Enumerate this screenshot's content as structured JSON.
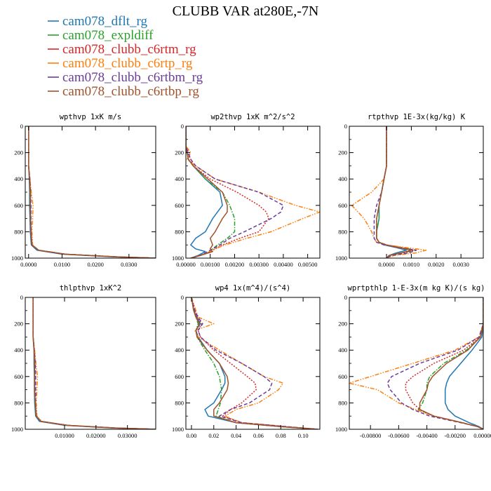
{
  "figure_title": "CLUBB VAR at280E,-7N",
  "legend": [
    {
      "label": "cam078_dflt_rg",
      "color": "#1f77b4",
      "dash": "solid"
    },
    {
      "label": "cam078_expldiff",
      "color": "#2ca02c",
      "dash": "dashdot"
    },
    {
      "label": "cam078_clubb_c6rtm_rg",
      "color": "#d62728",
      "dash": "dot"
    },
    {
      "label": "cam078_clubb_c6rtp_rg",
      "color": "#ff7f0e",
      "dash": "dashdotdot"
    },
    {
      "label": "cam078_clubb_c6rtbm_rg",
      "color": "#6a3d9a",
      "dash": "dash"
    },
    {
      "label": "cam078_clubb_c6rtbp_rg",
      "color": "#a0522d",
      "dash": "solid"
    }
  ],
  "chart_data": [
    {
      "type": "line",
      "title": "wpthvp  1xK m/s",
      "xlim": [
        -0.001,
        0.038
      ],
      "ylim": [
        1000,
        0
      ],
      "xticks": [
        0,
        0.01,
        0.02,
        0.03
      ],
      "xtick_labels": [
        "0.0000",
        "0.0100",
        "0.0200",
        "0.0300"
      ],
      "yticks": [
        0,
        200,
        400,
        600,
        800,
        1000
      ],
      "ytick_labels": [
        "0",
        "200",
        "400",
        "600",
        "800",
        "1000"
      ],
      "y": [
        0,
        200,
        300,
        400,
        500,
        600,
        700,
        800,
        900,
        940,
        970,
        990,
        1000
      ],
      "series": [
        {
          "legend": 0,
          "x": [
            0,
            0,
            0,
            0.0002,
            0.0003,
            0.0003,
            0.0004,
            0.0005,
            0.0008,
            0.0025,
            0.01,
            0.025,
            0.038
          ]
        },
        {
          "legend": 1,
          "x": [
            0,
            0,
            0,
            0.0003,
            0.0004,
            0.0005,
            0.0006,
            0.0007,
            0.001,
            0.003,
            0.011,
            0.026,
            0.038
          ]
        },
        {
          "legend": 2,
          "x": [
            0,
            0,
            0,
            0.0003,
            0.0005,
            0.0006,
            0.0006,
            0.0007,
            0.001,
            0.003,
            0.011,
            0.026,
            0.038
          ]
        },
        {
          "legend": 3,
          "x": [
            0,
            0,
            0,
            0.0004,
            0.0008,
            0.0013,
            0.0012,
            0.001,
            0.0012,
            0.003,
            0.011,
            0.026,
            0.038
          ]
        },
        {
          "legend": 4,
          "x": [
            0,
            0,
            0,
            0.0004,
            0.0006,
            0.0007,
            0.0007,
            0.0008,
            0.001,
            0.003,
            0.011,
            0.026,
            0.038
          ]
        },
        {
          "legend": 5,
          "x": [
            0,
            0,
            0,
            0.0003,
            0.0005,
            0.0005,
            0.0006,
            0.0007,
            0.001,
            0.003,
            0.011,
            0.026,
            0.038
          ]
        }
      ]
    },
    {
      "type": "line",
      "title": "wp2thvp  1xK m^2/s^2",
      "xlim": [
        0,
        0.0055
      ],
      "ylim": [
        1000,
        0
      ],
      "xticks": [
        0,
        0.001,
        0.002,
        0.003,
        0.004,
        0.005
      ],
      "xtick_labels": [
        "0.00000",
        "0.00100",
        "0.00200",
        "0.00300",
        "0.00400",
        "0.00500"
      ],
      "yticks": [
        0,
        200,
        400,
        600,
        800,
        1000
      ],
      "ytick_labels": [
        "0",
        "200",
        "400",
        "600",
        "800",
        "1000"
      ],
      "y": [
        0,
        150,
        200,
        250,
        300,
        400,
        500,
        600,
        650,
        700,
        800,
        850,
        900,
        930,
        950,
        980,
        1000
      ],
      "series": [
        {
          "legend": 0,
          "x": [
            0,
            0,
            5e-05,
            0.0001,
            0.0003,
            0.0008,
            0.0014,
            0.0015,
            0.0013,
            0.0011,
            0.0008,
            0.0004,
            0.0002,
            0.0004,
            0.0008,
            0.0005,
            0.0002
          ]
        },
        {
          "legend": 1,
          "x": [
            0,
            0,
            5e-05,
            0.0001,
            0.0003,
            0.0008,
            0.0015,
            0.0018,
            0.0019,
            0.002,
            0.002,
            0.0017,
            0.0013,
            0.0011,
            0.001,
            0.0006,
            0.0002
          ]
        },
        {
          "legend": 2,
          "x": [
            0,
            0,
            5e-05,
            0.0002,
            0.0003,
            0.001,
            0.0021,
            0.003,
            0.0033,
            0.0034,
            0.003,
            0.0022,
            0.0015,
            0.0012,
            0.001,
            0.0006,
            0.0002
          ]
        },
        {
          "legend": 3,
          "x": [
            0,
            0,
            0.0002,
            5e-05,
            0.0004,
            0.0012,
            0.003,
            0.0045,
            0.0055,
            0.0048,
            0.0035,
            0.0025,
            0.0016,
            0.0012,
            0.001,
            0.0006,
            0.0002
          ]
        },
        {
          "legend": 4,
          "x": [
            0,
            0,
            0.0001,
            0.0002,
            0.0004,
            0.0012,
            0.003,
            0.004,
            0.0039,
            0.0035,
            0.0024,
            0.0018,
            0.0014,
            0.0011,
            0.0009,
            0.0006,
            0.0002
          ]
        },
        {
          "legend": 5,
          "x": [
            0,
            0,
            5e-05,
            0.0001,
            0.0003,
            0.0009,
            0.0015,
            0.0017,
            0.0017,
            0.0015,
            0.0012,
            0.001,
            0.0011,
            0.001,
            0.0011,
            0.0006,
            0.0002
          ]
        }
      ]
    },
    {
      "type": "line",
      "title": "rtpthvp  1E-3x(kg/kg) K",
      "xlim": [
        -0.0015,
        0.0039
      ],
      "ylim": [
        1000,
        0
      ],
      "xticks": [
        0,
        0.001,
        0.002,
        0.003
      ],
      "xtick_labels": [
        "0.0000",
        "0.0010",
        "0.0020",
        "0.0030"
      ],
      "yticks": [
        0,
        200,
        400,
        600,
        800,
        1000
      ],
      "ytick_labels": [
        "0",
        "200",
        "400",
        "600",
        "800",
        "1000"
      ],
      "y": [
        0,
        300,
        400,
        500,
        600,
        700,
        800,
        850,
        880,
        900,
        920,
        940,
        960,
        980,
        1000
      ],
      "series": [
        {
          "legend": 0,
          "x": [
            0,
            0,
            -0.0001,
            -0.0002,
            -0.0003,
            -0.0003,
            -0.0004,
            -0.0004,
            -0.0003,
            -0.0001,
            0.0004,
            0.0008,
            0.0004,
            0.0001,
            0
          ]
        },
        {
          "legend": 1,
          "x": [
            0,
            0,
            -0.0001,
            -0.0002,
            -0.0003,
            -0.0003,
            -0.0004,
            -0.0004,
            -0.0003,
            0,
            0.0006,
            0.0012,
            0.0006,
            0.0001,
            0
          ]
        },
        {
          "legend": 2,
          "x": [
            0,
            0,
            -0.0001,
            -0.0002,
            -0.0003,
            -0.0004,
            -0.0004,
            -0.0004,
            -0.0003,
            0,
            0.0006,
            0.0011,
            0.0007,
            0.0001,
            0
          ]
        },
        {
          "legend": 3,
          "x": [
            0,
            0,
            -0.0001,
            -0.0006,
            -0.0014,
            -0.0009,
            -0.0006,
            -0.0005,
            -0.0004,
            0,
            0.0008,
            0.0016,
            0.0012,
            0.0003,
            0
          ]
        },
        {
          "legend": 4,
          "x": [
            0,
            0,
            -0.0001,
            -0.0002,
            -0.0004,
            -0.0005,
            -0.0005,
            -0.0005,
            -0.0004,
            -0.0001,
            0.0005,
            0.0012,
            0.0009,
            0.0002,
            0
          ]
        },
        {
          "legend": 5,
          "x": [
            0,
            0,
            -0.0001,
            -0.0002,
            -0.0003,
            -0.0004,
            -0.0004,
            -0.0004,
            -0.0003,
            0,
            0.0005,
            0.001,
            0.0006,
            0.0001,
            0
          ]
        }
      ]
    },
    {
      "type": "line",
      "title": "thlpthvp  1xK^2",
      "xlim": [
        -0.0025,
        0.039
      ],
      "ylim": [
        1000,
        0
      ],
      "xticks": [
        0.01,
        0.02,
        0.03
      ],
      "xtick_labels": [
        "0.01000",
        "0.02000",
        "0.03000"
      ],
      "yticks": [
        0,
        200,
        400,
        600,
        800,
        1000
      ],
      "ytick_labels": [
        "0",
        "200",
        "400",
        "600",
        "800",
        "1000"
      ],
      "y": [
        0,
        200,
        300,
        400,
        500,
        600,
        700,
        800,
        900,
        940,
        970,
        990,
        1000
      ],
      "series": [
        {
          "legend": 0,
          "x": [
            0,
            0,
            0,
            0.0003,
            0.0003,
            0.0004,
            0.0004,
            0.0005,
            0.0008,
            0.002,
            0.01,
            0.025,
            0.039
          ]
        },
        {
          "legend": 1,
          "x": [
            0,
            0,
            0,
            0.0003,
            0.0005,
            0.0005,
            0.0005,
            0.0006,
            0.0009,
            0.0025,
            0.011,
            0.026,
            0.039
          ]
        },
        {
          "legend": 2,
          "x": [
            0,
            0,
            0,
            0.0004,
            0.0006,
            0.0006,
            0.0006,
            0.0007,
            0.001,
            0.0025,
            0.011,
            0.026,
            0.039
          ]
        },
        {
          "legend": 3,
          "x": [
            0,
            0,
            0,
            0.0005,
            0.0009,
            0.0014,
            0.0012,
            0.001,
            0.0012,
            0.0028,
            0.011,
            0.026,
            0.039
          ]
        },
        {
          "legend": 4,
          "x": [
            0,
            0,
            0,
            0.0004,
            0.0007,
            0.0008,
            0.0008,
            0.0008,
            0.001,
            0.0025,
            0.011,
            0.026,
            0.039
          ]
        },
        {
          "legend": 5,
          "x": [
            0,
            0,
            0,
            0.0003,
            0.0005,
            0.0005,
            0.0005,
            0.0007,
            0.001,
            0.0025,
            0.011,
            0.026,
            0.039
          ]
        }
      ]
    },
    {
      "type": "line",
      "title": "wp4  1x(m^4)/(s^4)",
      "xlim": [
        -0.005,
        0.115
      ],
      "ylim": [
        1000,
        0
      ],
      "xticks": [
        0,
        0.02,
        0.04,
        0.06,
        0.08,
        0.1
      ],
      "xtick_labels": [
        "0.00",
        "0.02",
        "0.04",
        "0.06",
        "0.08",
        "0.10"
      ],
      "yticks": [
        0,
        200,
        400,
        600,
        800,
        1000
      ],
      "ytick_labels": [
        "0",
        "200",
        "400",
        "600",
        "800",
        "1000"
      ],
      "y": [
        0,
        100,
        150,
        200,
        250,
        300,
        400,
        500,
        600,
        650,
        700,
        800,
        850,
        900,
        950,
        980,
        1000
      ],
      "series": [
        {
          "legend": 0,
          "x": [
            0,
            0.002,
            0.005,
            0.008,
            0.004,
            0.006,
            0.014,
            0.025,
            0.03,
            0.03,
            0.027,
            0.02,
            0.012,
            0.015,
            0.04,
            0.08,
            0.113
          ]
        },
        {
          "legend": 1,
          "x": [
            0,
            0.002,
            0.004,
            0.006,
            0.004,
            0.005,
            0.012,
            0.02,
            0.025,
            0.026,
            0.027,
            0.026,
            0.024,
            0.022,
            0.04,
            0.08,
            0.113
          ]
        },
        {
          "legend": 2,
          "x": [
            0,
            0.003,
            0.005,
            0.009,
            0.006,
            0.008,
            0.02,
            0.035,
            0.05,
            0.057,
            0.058,
            0.045,
            0.035,
            0.028,
            0.045,
            0.085,
            0.113
          ]
        },
        {
          "legend": 3,
          "x": [
            0,
            0.004,
            0.006,
            0.02,
            0.003,
            0.006,
            0.025,
            0.045,
            0.065,
            0.082,
            0.078,
            0.06,
            0.04,
            0.03,
            0.045,
            0.085,
            0.113
          ]
        },
        {
          "legend": 4,
          "x": [
            0,
            0.003,
            0.006,
            0.01,
            0.006,
            0.008,
            0.022,
            0.045,
            0.065,
            0.072,
            0.07,
            0.052,
            0.035,
            0.025,
            0.045,
            0.085,
            0.113
          ]
        },
        {
          "legend": 5,
          "x": [
            0,
            0.002,
            0.004,
            0.007,
            0.004,
            0.005,
            0.014,
            0.025,
            0.032,
            0.033,
            0.032,
            0.025,
            0.02,
            0.02,
            0.04,
            0.08,
            0.113
          ]
        }
      ]
    },
    {
      "type": "line",
      "title": "wprtpthlp  1-E-3x(m kg K)/(s kg)",
      "xlim": [
        -0.0095,
        0
      ],
      "ylim": [
        1000,
        0
      ],
      "xticks": [
        -0.008,
        -0.006,
        -0.004,
        -0.002,
        0
      ],
      "xtick_labels": [
        "-0.00800",
        "-0.00600",
        "-0.00400",
        "-0.00200",
        "0.00000"
      ],
      "yticks": [
        0,
        200,
        400,
        600,
        800,
        1000
      ],
      "ytick_labels": [
        "0",
        "200",
        "400",
        "600",
        "800",
        "1000"
      ],
      "y": [
        0,
        200,
        300,
        400,
        500,
        600,
        650,
        700,
        800,
        850,
        900,
        950,
        980,
        1000
      ],
      "series": [
        {
          "legend": 0,
          "x": [
            0,
            0,
            -0.0001,
            -0.0008,
            -0.0016,
            -0.0024,
            -0.0026,
            -0.0027,
            -0.0027,
            -0.0025,
            -0.002,
            -0.001,
            -0.0003,
            0
          ]
        },
        {
          "legend": 1,
          "x": [
            0,
            0,
            -0.0002,
            -0.0012,
            -0.0028,
            -0.0038,
            -0.004,
            -0.004,
            -0.0043,
            -0.0046,
            -0.0035,
            -0.0015,
            -0.0004,
            0
          ]
        },
        {
          "legend": 2,
          "x": [
            0,
            0,
            -0.0002,
            -0.0014,
            -0.0035,
            -0.005,
            -0.0055,
            -0.0055,
            -0.005,
            -0.0045,
            -0.0035,
            -0.0015,
            -0.0004,
            0
          ]
        },
        {
          "legend": 3,
          "x": [
            0,
            0,
            -0.0003,
            -0.002,
            -0.005,
            -0.008,
            -0.0095,
            -0.0075,
            -0.006,
            -0.0048,
            -0.0035,
            -0.0015,
            -0.0004,
            0
          ]
        },
        {
          "legend": 4,
          "x": [
            0,
            0,
            -0.0003,
            -0.0018,
            -0.0045,
            -0.0065,
            -0.0068,
            -0.0066,
            -0.0058,
            -0.005,
            -0.0038,
            -0.0016,
            -0.0004,
            0
          ]
        },
        {
          "legend": 5,
          "x": [
            0,
            0,
            -0.0002,
            -0.0011,
            -0.0026,
            -0.0036,
            -0.0039,
            -0.004,
            -0.0045,
            -0.0045,
            -0.0035,
            -0.0015,
            -0.0004,
            0
          ]
        }
      ]
    }
  ]
}
